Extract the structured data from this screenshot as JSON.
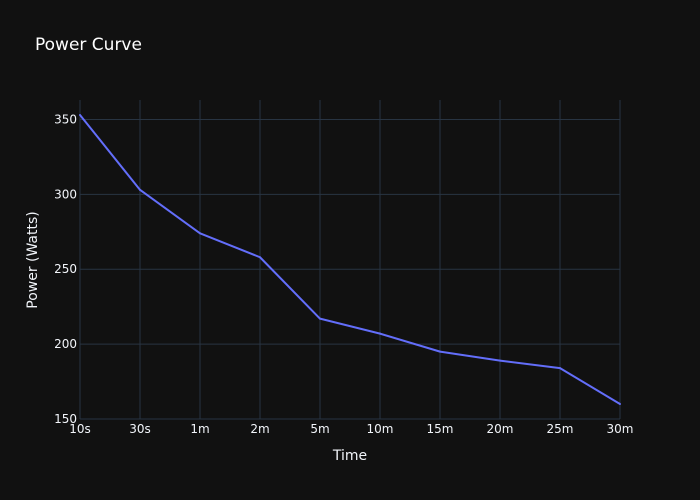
{
  "chart_data": {
    "type": "line",
    "title": "Power Curve",
    "xlabel": "Time",
    "ylabel": "Power (Watts)",
    "categories": [
      "10s",
      "30s",
      "1m",
      "2m",
      "5m",
      "10m",
      "15m",
      "20m",
      "25m",
      "30m"
    ],
    "series": [
      {
        "values": [
          353,
          303,
          274,
          258,
          217,
          207,
          195,
          189,
          184,
          160
        ],
        "color": "#636efa"
      }
    ],
    "ylim": [
      150,
      363
    ],
    "yticks": [
      150,
      200,
      250,
      300,
      350
    ],
    "grid": true,
    "legend": "none",
    "colors": {
      "background": "#111111",
      "grid": "#283442",
      "text": "#f2f5fa",
      "title": "#ffffff"
    }
  }
}
